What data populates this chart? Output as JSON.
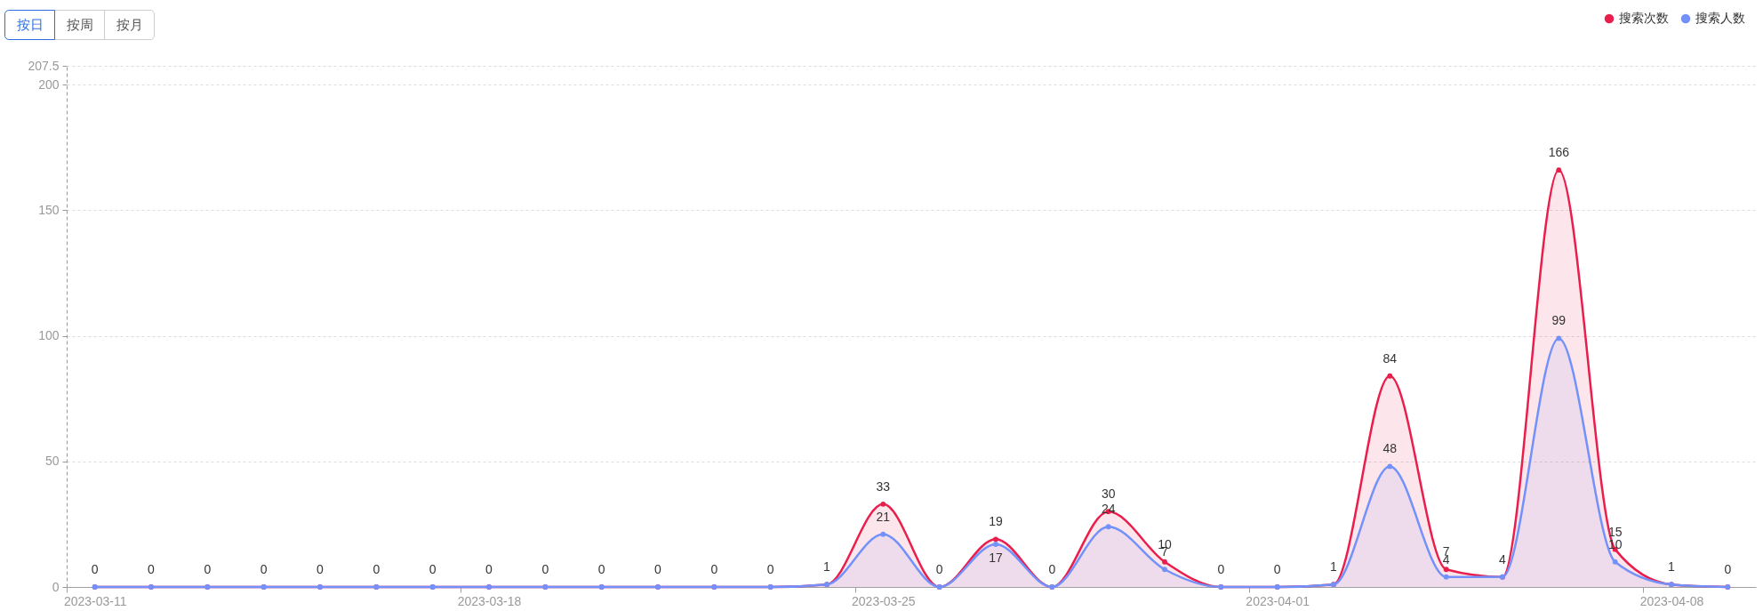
{
  "chart_data": {
    "type": "area",
    "annotations": [
      "按日",
      "按周",
      "按月"
    ],
    "categories": [
      "2023-03-11",
      null,
      null,
      null,
      null,
      null,
      null,
      "2023-03-18",
      null,
      null,
      null,
      null,
      null,
      null,
      "2023-03-25",
      null,
      null,
      null,
      null,
      null,
      null,
      "2023-04-01",
      null,
      null,
      null,
      null,
      null,
      null,
      "2023-04-08",
      null
    ],
    "series": [
      {
        "name": "搜索次数",
        "color": "#e91e4c",
        "values": [
          0,
          0,
          0,
          0,
          0,
          0,
          0,
          0,
          0,
          0,
          0,
          0,
          0,
          1,
          33,
          0,
          19,
          0,
          30,
          10,
          0,
          0,
          1,
          84,
          7,
          4,
          166,
          15,
          1,
          0
        ]
      },
      {
        "name": "搜索人数",
        "color": "#7391fa",
        "values": [
          0,
          0,
          0,
          0,
          0,
          0,
          0,
          0,
          0,
          0,
          0,
          0,
          0,
          1,
          21,
          0,
          17,
          0,
          24,
          7,
          0,
          0,
          1,
          48,
          4,
          4,
          99,
          10,
          1,
          0
        ],
        "value_labels": [
          null,
          null,
          null,
          null,
          null,
          null,
          null,
          null,
          null,
          null,
          null,
          null,
          null,
          null,
          "21",
          null,
          "17",
          null,
          "24",
          "7",
          null,
          null,
          null,
          "48",
          "4",
          null,
          "99",
          "10",
          null,
          null
        ]
      }
    ],
    "ylim": [
      0,
      207.5
    ],
    "yticks": [
      0,
      50,
      100,
      150,
      200,
      207.5
    ],
    "grid": "y",
    "legend": "top right",
    "marker": "circle",
    "data_labels": true
  }
}
